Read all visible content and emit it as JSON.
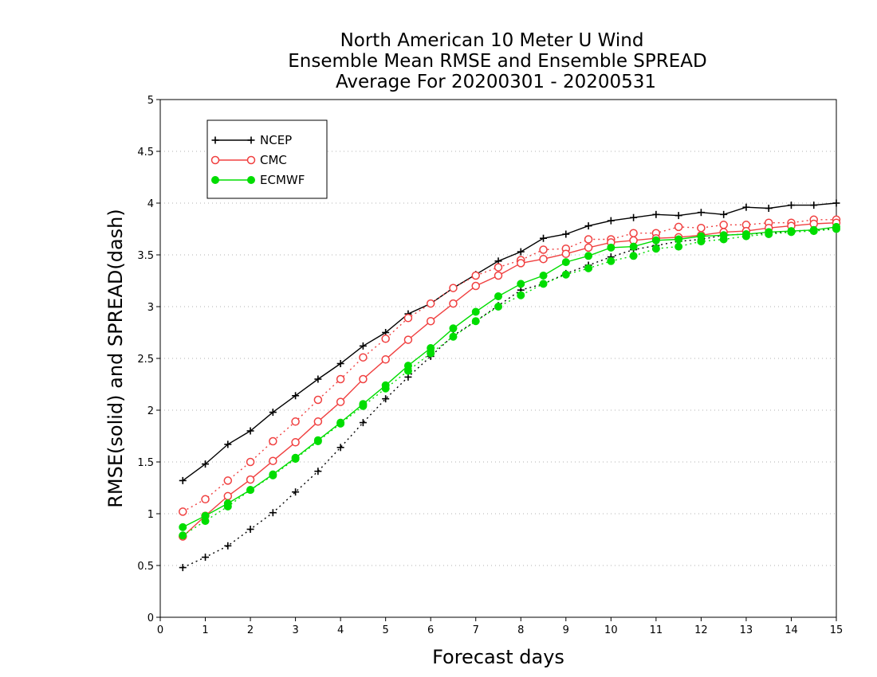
{
  "chart_data": {
    "type": "line",
    "title": [
      "North American 10 Meter U Wind",
      "Ensemble Mean RMSE and Ensemble SPREAD",
      "Average For 20200301 - 20200531"
    ],
    "xlabel": "Forecast days",
    "ylabel": "RMSE(solid) and SPREAD(dash)",
    "xlim": [
      0,
      15
    ],
    "ylim": [
      0,
      5
    ],
    "xticks": [
      "0",
      "1",
      "2",
      "3",
      "4",
      "5",
      "6",
      "7",
      "8",
      "9",
      "10",
      "11",
      "12",
      "13",
      "14",
      "15"
    ],
    "yticks": [
      "0",
      "0.5",
      "1",
      "1.5",
      "2",
      "2.5",
      "3",
      "3.5",
      "4",
      "4.5",
      "5"
    ],
    "grid": "horizontal dotted",
    "legend_position": "top-left",
    "x": [
      0.5,
      1,
      1.5,
      2,
      2.5,
      3,
      3.5,
      4,
      4.5,
      5,
      5.5,
      6,
      6.5,
      7,
      7.5,
      8,
      8.5,
      9,
      9.5,
      10,
      10.5,
      11,
      11.5,
      12,
      12.5,
      13,
      13.5,
      14,
      14.5,
      15
    ],
    "series": [
      {
        "name": "NCEP",
        "color": "#000000",
        "marker": "plus",
        "rmse": [
          1.32,
          1.48,
          1.67,
          1.8,
          1.98,
          2.14,
          2.3,
          2.45,
          2.62,
          2.75,
          2.93,
          3.03,
          3.18,
          3.31,
          3.44,
          3.53,
          3.66,
          3.7,
          3.78,
          3.83,
          3.86,
          3.89,
          3.88,
          3.91,
          3.89,
          3.96,
          3.95,
          3.98,
          3.98,
          4.0
        ],
        "spread": [
          0.48,
          0.58,
          0.69,
          0.85,
          1.01,
          1.21,
          1.41,
          1.64,
          1.88,
          2.11,
          2.32,
          2.52,
          2.72,
          2.86,
          3.01,
          3.16,
          3.22,
          3.32,
          3.4,
          3.48,
          3.55,
          3.59,
          3.63,
          3.65,
          3.69,
          3.7,
          3.71,
          3.73,
          3.74,
          3.76
        ]
      },
      {
        "name": "CMC",
        "color": "#f04040",
        "marker": "open-circle",
        "rmse": [
          0.78,
          0.98,
          1.17,
          1.33,
          1.51,
          1.69,
          1.89,
          2.08,
          2.3,
          2.49,
          2.68,
          2.86,
          3.03,
          3.2,
          3.3,
          3.42,
          3.46,
          3.51,
          3.57,
          3.62,
          3.64,
          3.66,
          3.67,
          3.69,
          3.72,
          3.73,
          3.76,
          3.78,
          3.8,
          3.81
        ],
        "spread": [
          1.02,
          1.14,
          1.32,
          1.5,
          1.7,
          1.89,
          2.1,
          2.3,
          2.51,
          2.69,
          2.89,
          3.03,
          3.18,
          3.3,
          3.38,
          3.45,
          3.55,
          3.56,
          3.65,
          3.65,
          3.71,
          3.71,
          3.77,
          3.76,
          3.79,
          3.79,
          3.81,
          3.81,
          3.84,
          3.84
        ]
      },
      {
        "name": "ECMWF",
        "color": "#00dd00",
        "marker": "filled-circle",
        "rmse": [
          0.87,
          0.98,
          1.1,
          1.23,
          1.38,
          1.54,
          1.71,
          1.88,
          2.06,
          2.24,
          2.43,
          2.6,
          2.79,
          2.95,
          3.1,
          3.22,
          3.3,
          3.43,
          3.49,
          3.57,
          3.58,
          3.64,
          3.65,
          3.68,
          3.69,
          3.7,
          3.72,
          3.73,
          3.74,
          3.77
        ],
        "spread": [
          0.79,
          0.93,
          1.07,
          1.23,
          1.37,
          1.53,
          1.7,
          1.87,
          2.04,
          2.21,
          2.38,
          2.55,
          2.71,
          2.86,
          3.0,
          3.11,
          3.22,
          3.31,
          3.37,
          3.44,
          3.49,
          3.56,
          3.58,
          3.63,
          3.65,
          3.68,
          3.7,
          3.72,
          3.73,
          3.75
        ]
      }
    ]
  }
}
